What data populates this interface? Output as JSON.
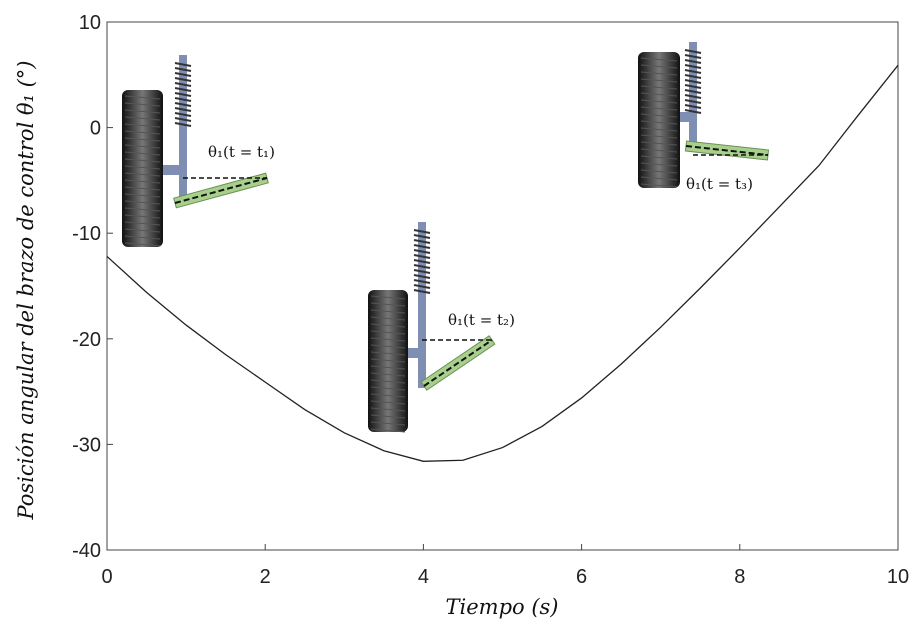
{
  "chart_data": {
    "type": "line",
    "x_label": "Tiempo (s)",
    "y_label": "Posición angular del brazo de control θ₁ (°)",
    "x": [
      0,
      0.5,
      1,
      1.5,
      2,
      2.5,
      3,
      3.5,
      4,
      4.5,
      5,
      5.5,
      6,
      6.5,
      7,
      7.5,
      8,
      8.5,
      9,
      9.5,
      10
    ],
    "values": [
      -12.2,
      -15.6,
      -18.7,
      -21.5,
      -24.1,
      -26.7,
      -28.9,
      -30.6,
      -31.6,
      -31.5,
      -30.3,
      -28.3,
      -25.6,
      -22.4,
      -18.9,
      -15.2,
      -11.4,
      -7.5,
      -3.6,
      1.2,
      5.9
    ],
    "color": "#222222",
    "xlim": [
      0,
      10
    ],
    "xticks": [
      0,
      2,
      4,
      6,
      8,
      10
    ],
    "ylim": [
      -40,
      10
    ],
    "yticks": [
      -40,
      -30,
      -20,
      -10,
      0,
      10
    ],
    "annotations": [
      "θ₁(t = t₁)",
      "θ₁(t = t₂)",
      "θ₁(t = t₃)"
    ]
  }
}
